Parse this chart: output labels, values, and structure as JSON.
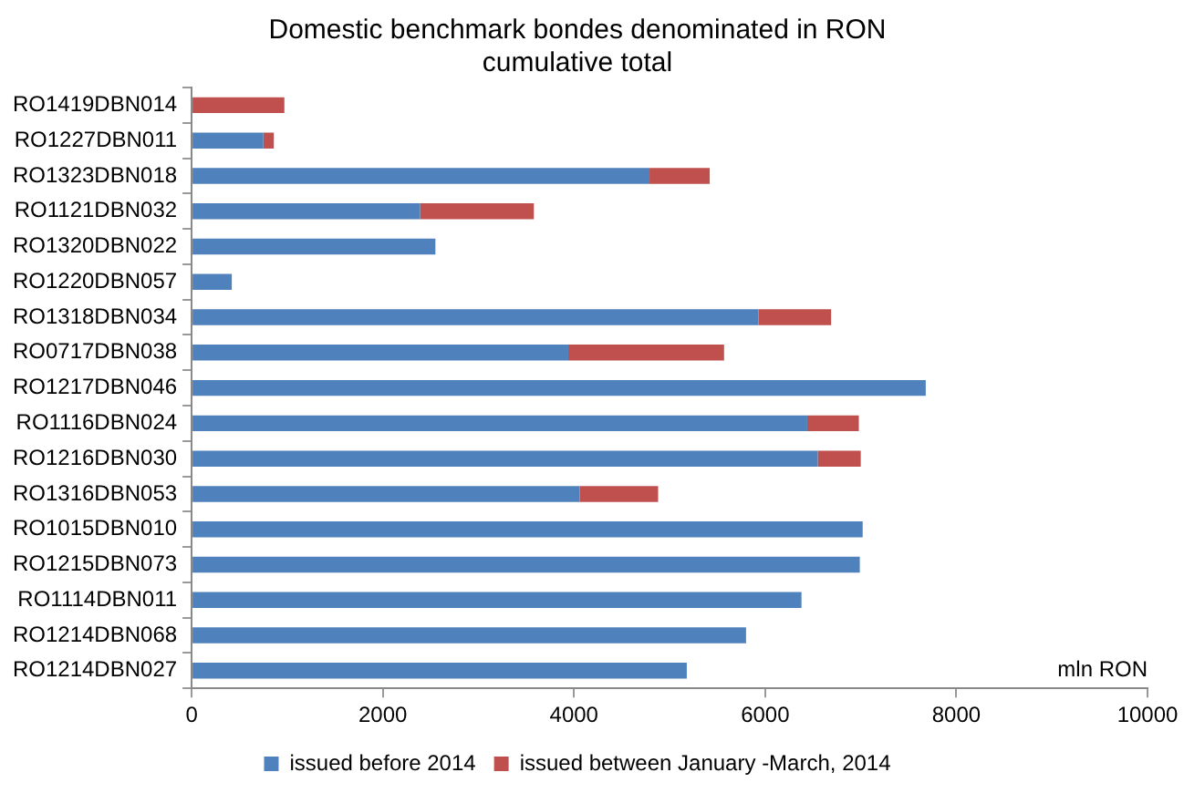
{
  "chart_data": {
    "type": "bar",
    "orientation": "horizontal",
    "stacked": true,
    "title": "Domestic benchmark bondes denominated in RON\ncumulative total",
    "categories": [
      "RO1419DBN014",
      "RO1227DBN011",
      "RO1323DBN018",
      "RO1121DBN032",
      "RO1320DBN022",
      "RO1220DBN057",
      "RO1318DBN034",
      "RO0717DBN038",
      "RO1217DBN046",
      "RO1116DBN024",
      "RO1216DBN030",
      "RO1316DBN053",
      "RO1015DBN010",
      "RO1215DBN073",
      "RO1114DBN011",
      "RO1214DBN068",
      "RO1214DBN027"
    ],
    "series": [
      {
        "name": "issued before 2014",
        "color": "#4f81bd",
        "values": [
          null,
          750,
          4790,
          2390,
          2550,
          420,
          5930,
          3940,
          7680,
          6440,
          6550,
          4060,
          7020,
          6990,
          6380,
          5800,
          5180
        ]
      },
      {
        "name": "issued between January -March, 2014",
        "color": "#c0504d",
        "values": [
          970,
          110,
          630,
          1190,
          null,
          null,
          760,
          1630,
          null,
          540,
          450,
          820,
          null,
          null,
          null,
          null,
          null
        ]
      }
    ],
    "xlim": [
      0,
      10000
    ],
    "xticks": [
      0,
      2000,
      4000,
      6000,
      8000,
      10000
    ],
    "grid": false,
    "legend": "bottom",
    "annotations": [
      "mln RON"
    ]
  }
}
